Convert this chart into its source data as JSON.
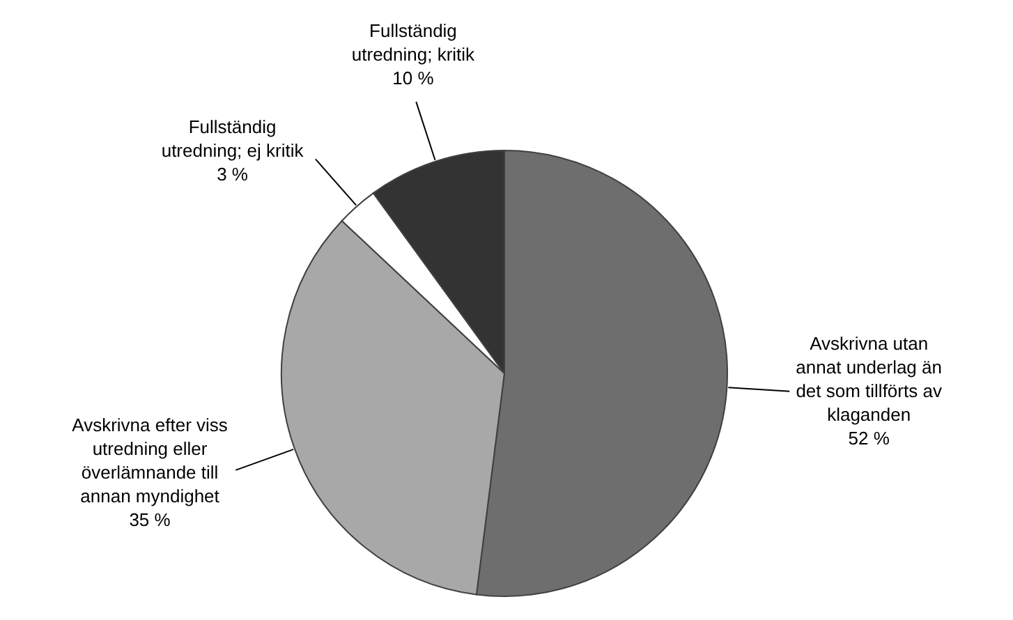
{
  "chart_data": {
    "type": "pie",
    "categories": [
      "Avskrivna utan\nannat underlag än\ndet som tillförts av\nklaganden",
      "Avskrivna efter viss\nutredning eller\növerlämnande till\nannan myndighet",
      "Fullständig\nutredning; ej kritik",
      "Fullständig\nutredning; kritik"
    ],
    "values": [
      52,
      35,
      3,
      10
    ],
    "value_labels": [
      "52 %",
      "35 %",
      "3 %",
      "10 %"
    ],
    "colors": [
      "#6e6e6e",
      "#a8a8a8",
      "#ffffff",
      "#333333"
    ]
  }
}
